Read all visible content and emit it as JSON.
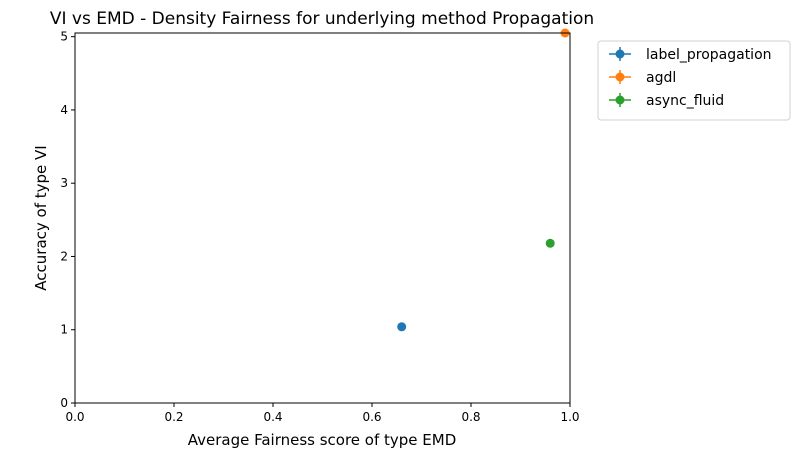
{
  "chart_data": {
    "type": "scatter",
    "title": "VI vs EMD - Density Fairness for underlying method Propagation",
    "xlabel": "Average Fairness score of type EMD",
    "ylabel": "Accuracy of type VI",
    "xlim": [
      0.0,
      1.0
    ],
    "ylim": [
      0,
      5.05
    ],
    "x_ticks": [
      0.0,
      0.2,
      0.4,
      0.6,
      0.8,
      1.0
    ],
    "x_tick_labels": [
      "0.0",
      "0.2",
      "0.4",
      "0.6",
      "0.8",
      "1.0"
    ],
    "y_ticks": [
      0,
      1,
      2,
      3,
      4,
      5
    ],
    "y_tick_labels": [
      "0",
      "1",
      "2",
      "3",
      "4",
      "5"
    ],
    "grid": false,
    "legend_position": "outside-top-right",
    "series": [
      {
        "name": "label_propagation",
        "color": "#1f77b4",
        "x": [
          0.66
        ],
        "y": [
          1.04
        ]
      },
      {
        "name": "agdl",
        "color": "#ff7f0e",
        "x": [
          0.99
        ],
        "y": [
          5.05
        ]
      },
      {
        "name": "async_fluid",
        "color": "#2ca02c",
        "x": [
          0.96
        ],
        "y": [
          2.18
        ]
      }
    ]
  }
}
